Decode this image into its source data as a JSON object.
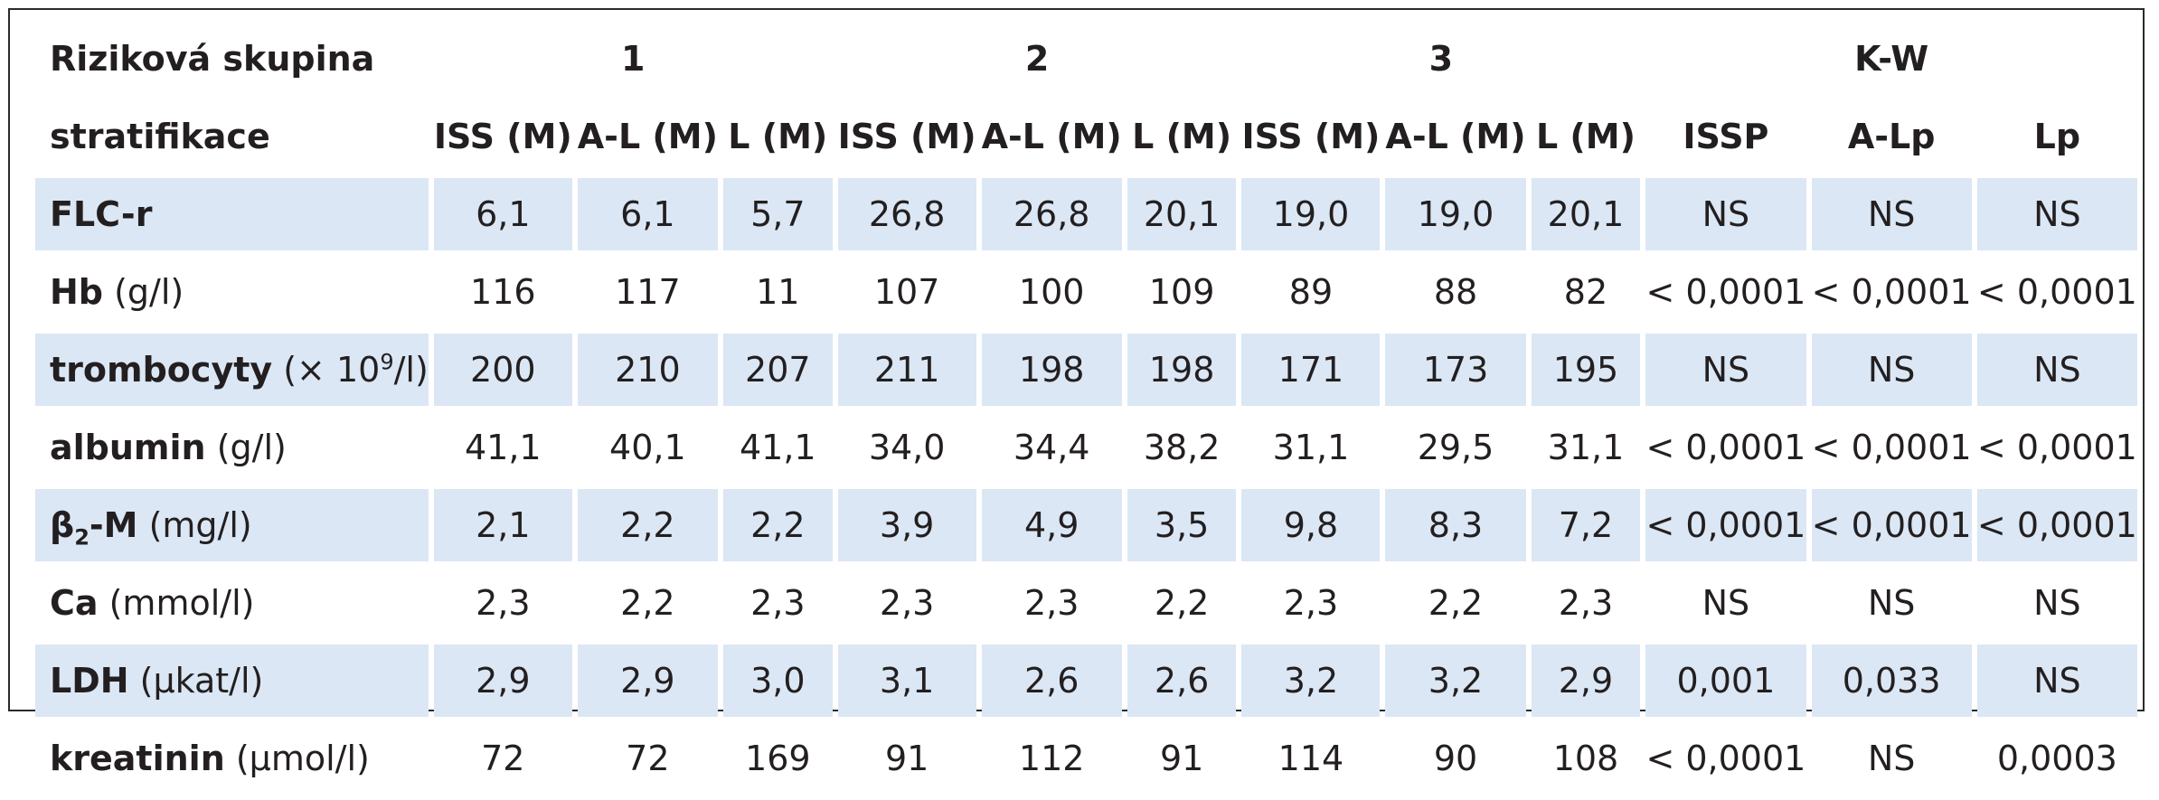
{
  "table": {
    "group_header": {
      "label": "Riziková skupina",
      "groups": [
        "1",
        "2",
        "3",
        "K-W"
      ]
    },
    "strat_header": {
      "label": "stratifikace",
      "columns": [
        "ISS (M)",
        "A-L (M)",
        "L (M)",
        "ISS (M)",
        "A-L (M)",
        "L (M)",
        "ISS (M)",
        "A-L (M)",
        "L (M)",
        "ISSP",
        "A-Lp",
        "Lp"
      ]
    },
    "rows": [
      {
        "name": "FLC-r",
        "unit_pre": "",
        "sub": "",
        "sup": "",
        "unit_post": "",
        "shaded": true,
        "values": [
          "6,1",
          "6,1",
          "5,7",
          "26,8",
          "26,8",
          "20,1",
          "19,0",
          "19,0",
          "20,1",
          "NS",
          "NS",
          "NS"
        ]
      },
      {
        "name": "Hb",
        "unit_pre": " (g/l)",
        "sub": "",
        "sup": "",
        "unit_post": "",
        "shaded": false,
        "values": [
          "116",
          "117",
          "11",
          "107",
          "100",
          "109",
          "89",
          "88",
          "82",
          "< 0,0001",
          "< 0,0001",
          "< 0,0001"
        ]
      },
      {
        "name": "trombocyty",
        "unit_pre": " (× 10",
        "sub": "",
        "sup": "9",
        "unit_post": "/l)",
        "shaded": true,
        "values": [
          "200",
          "210",
          "207",
          "211",
          "198",
          "198",
          "171",
          "173",
          "195",
          "NS",
          "NS",
          "NS"
        ]
      },
      {
        "name": "albumin",
        "unit_pre": " (g/l)",
        "sub": "",
        "sup": "",
        "unit_post": "",
        "shaded": false,
        "values": [
          "41,1",
          "40,1",
          "41,1",
          "34,0",
          "34,4",
          "38,2",
          "31,1",
          "29,5",
          "31,1",
          "< 0,0001",
          "< 0,0001",
          "< 0,0001"
        ]
      },
      {
        "name": "β",
        "unit_pre": "",
        "sub": "2",
        "sup": "",
        "unit_post": "-M (mg/l)",
        "shaded": true,
        "values": [
          "2,1",
          "2,2",
          "2,2",
          "3,9",
          "4,9",
          "3,5",
          "9,8",
          "8,3",
          "7,2",
          "< 0,0001",
          "< 0,0001",
          "< 0,0001"
        ]
      },
      {
        "name": "Ca",
        "unit_pre": " (mmol/l)",
        "sub": "",
        "sup": "",
        "unit_post": "",
        "shaded": false,
        "values": [
          "2,3",
          "2,2",
          "2,3",
          "2,3",
          "2,3",
          "2,2",
          "2,3",
          "2,2",
          "2,3",
          "NS",
          "NS",
          "NS"
        ]
      },
      {
        "name": "LDH",
        "unit_pre": " (µkat/l)",
        "sub": "",
        "sup": "",
        "unit_post": "",
        "shaded": true,
        "values": [
          "2,9",
          "2,9",
          "3,0",
          "3,1",
          "2,6",
          "2,6",
          "3,2",
          "3,2",
          "2,9",
          "0,001",
          "0,033",
          "NS"
        ]
      },
      {
        "name": "kreatinin",
        "unit_pre": " (µmol/l)",
        "sub": "",
        "sup": "",
        "unit_post": "",
        "shaded": false,
        "values": [
          "72",
          "72",
          "169",
          "91",
          "112",
          "91",
          "114",
          "90",
          "108",
          "< 0,0001",
          "NS",
          "0,0003"
        ]
      }
    ]
  }
}
